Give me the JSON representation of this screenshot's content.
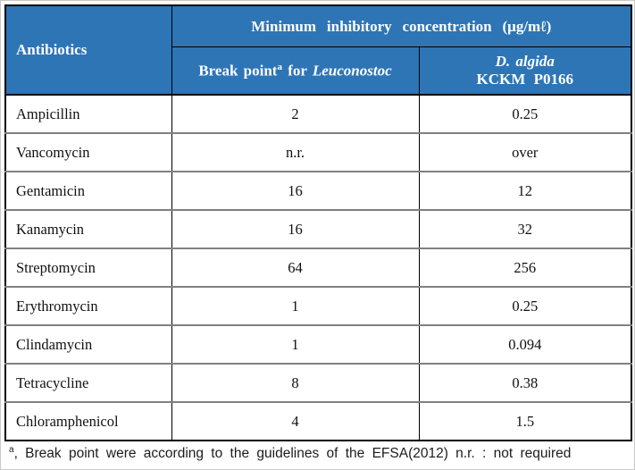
{
  "colors": {
    "header_bg": "#2E75B6",
    "header_text": "#FFFFFF",
    "row_divider": "#808080",
    "table_border": "#000000"
  },
  "table": {
    "header": {
      "antibiotics_label": "Antibiotics",
      "mic_title": "Minimum inhibitory concentration (μg/mℓ)",
      "breakpoint_col": {
        "prefix": "Break point",
        "superscript": "a",
        "connector": " for ",
        "genus_italic": "Leuconostoc"
      },
      "strain_col": {
        "line1_italic": "D. algida",
        "line2": "KCKM P0166"
      }
    },
    "rows": [
      {
        "name": "Ampicillin",
        "breakpoint": "2",
        "mic": "0.25"
      },
      {
        "name": "Vancomycin",
        "breakpoint": "n.r.",
        "mic": "over"
      },
      {
        "name": "Gentamicin",
        "breakpoint": "16",
        "mic": "12"
      },
      {
        "name": "Kanamycin",
        "breakpoint": "16",
        "mic": "32"
      },
      {
        "name": "Streptomycin",
        "breakpoint": "64",
        "mic": "256"
      },
      {
        "name": "Erythromycin",
        "breakpoint": "1",
        "mic": "0.25"
      },
      {
        "name": "Clindamycin",
        "breakpoint": "1",
        "mic": "0.094"
      },
      {
        "name": "Tetracycline",
        "breakpoint": "8",
        "mic": "0.38"
      },
      {
        "name": "Chloramphenicol",
        "breakpoint": "4",
        "mic": "1.5"
      }
    ]
  },
  "footnote": {
    "superscript": "a",
    "text": ", Break point were according to the guidelines of the EFSA(2012)  n.r. : not required"
  }
}
